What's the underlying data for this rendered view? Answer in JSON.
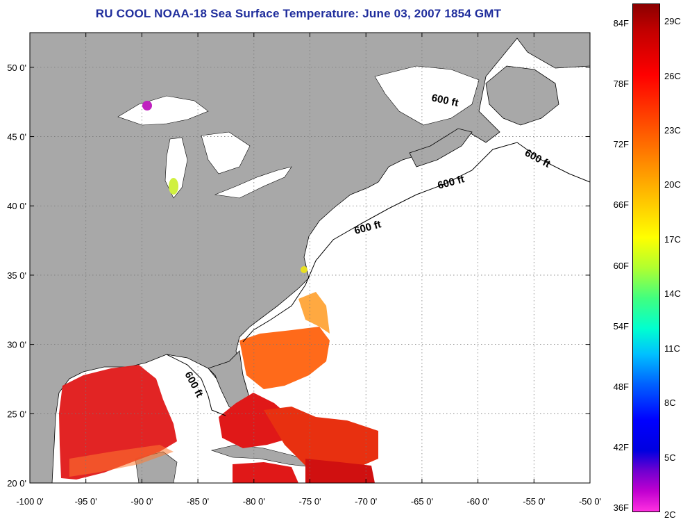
{
  "title": "RU COOL  NOAA-18  Sea Surface Temperature:  June 03, 2007 1854 GMT",
  "map": {
    "lon_labels": [
      "-100 0'",
      "-95 0'",
      "-90 0'",
      "-85 0'",
      "-80 0'",
      "-75 0'",
      "-70 0'",
      "-65 0'",
      "-60 0'",
      "-55 0'",
      "-50 0'"
    ],
    "lat_labels": [
      "50 0'",
      "45 0'",
      "40 0'",
      "35 0'",
      "30 0'",
      "25 0'",
      "20 0'"
    ],
    "lon_range": [
      -100,
      -50
    ],
    "lat_range": [
      20,
      52.5
    ],
    "isobath_label": "600 ft",
    "colors": {
      "land": "#a8a8a8",
      "cloud_no_data": "#ffffff",
      "warm_gulf": "#e01818",
      "gulf_stream": "#ff6a1a",
      "coastline": "#000000"
    }
  },
  "colorbar": {
    "fahrenheit_labels": [
      "84F",
      "78F",
      "72F",
      "66F",
      "60F",
      "54F",
      "48F",
      "42F",
      "36F"
    ],
    "celsius_labels": [
      "29C",
      "26C",
      "23C",
      "20C",
      "17C",
      "14C",
      "11C",
      "8C",
      "5C",
      "2C"
    ],
    "min_c": 2,
    "max_c": 30,
    "colormap": "jet-like: magenta (cold) to dark red (warm)"
  }
}
